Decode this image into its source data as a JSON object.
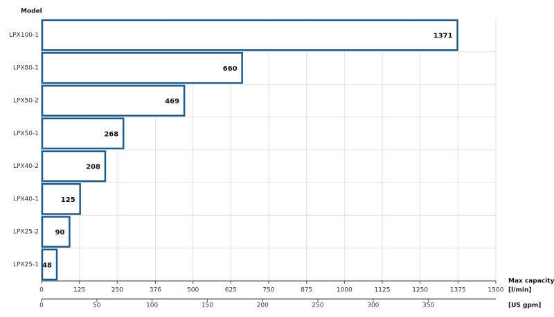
{
  "chart_data": {
    "type": "bar",
    "y_axis_label": "Model",
    "x_axis_label": "Max capacity",
    "x_unit": "[l/min]",
    "x2_unit": "[US gpm]",
    "categories": [
      "LPX100-1",
      "LPX80-1",
      "LPX50-2",
      "LPX50-1",
      "LPX40-2",
      "LPX40-1",
      "LPX25-2",
      "LPX25-1"
    ],
    "values": [
      1371,
      660,
      469,
      268,
      208,
      125,
      90,
      48
    ],
    "color": "#1e5a8c",
    "xlim": [
      0,
      1500
    ],
    "xticks": [
      0,
      125,
      250,
      376,
      500,
      625,
      750,
      875,
      1000,
      1125,
      1250,
      1375,
      1500
    ],
    "x2lim": [
      0,
      411
    ],
    "x2ticks": [
      0,
      50,
      100,
      150,
      200,
      250,
      300,
      350
    ],
    "grid": true
  }
}
